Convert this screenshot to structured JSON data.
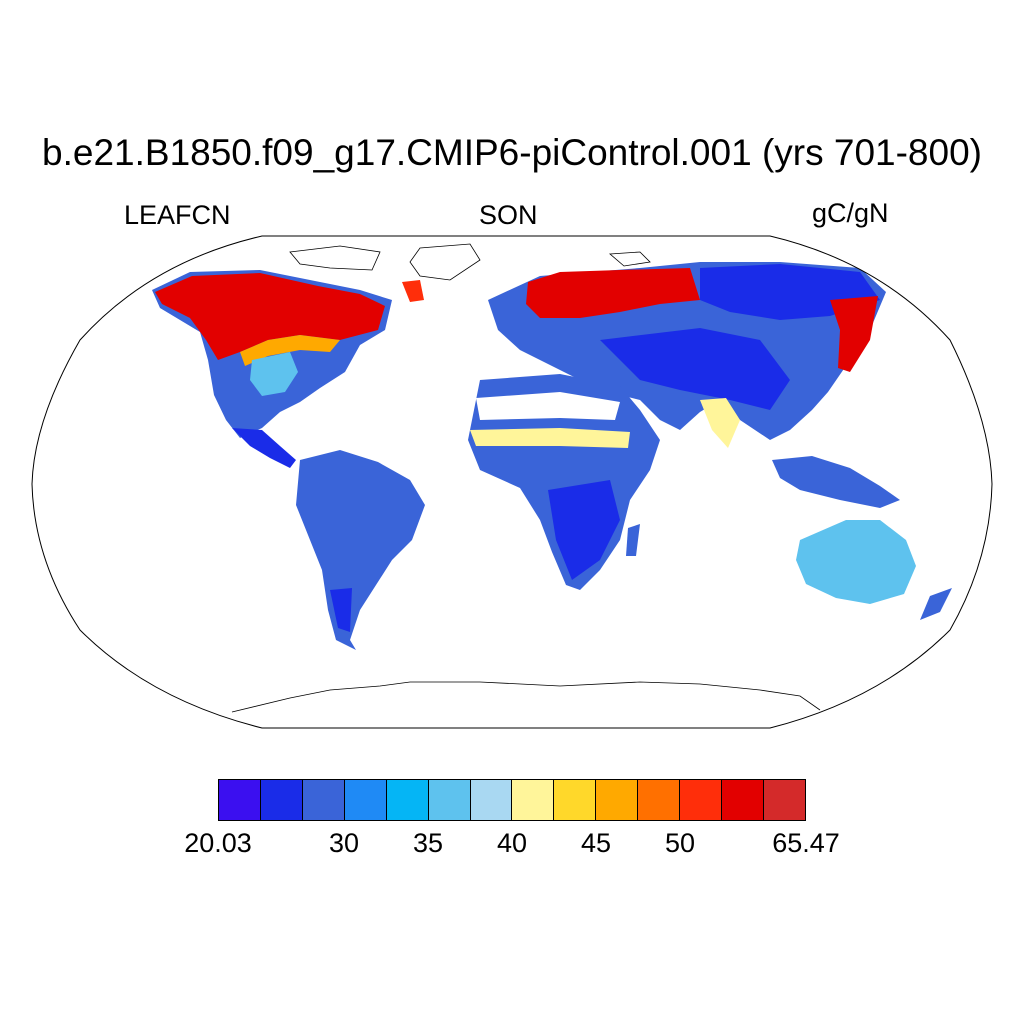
{
  "figure": {
    "title": "b.e21.B1850.f09_g17.CMIP6-piControl.001 (yrs 701-800)",
    "variable": "LEAFCN",
    "season": "SON",
    "units": "gC/gN"
  },
  "colorbar": {
    "colors": [
      "#3b0ff0",
      "#1a2ce8",
      "#3a64d8",
      "#1f8af5",
      "#05b5f5",
      "#5ec2ee",
      "#a9d8f2",
      "#fff59a",
      "#ffd82a",
      "#ffa900",
      "#ff7000",
      "#ff2e0a",
      "#e20000",
      "#d42a2a"
    ],
    "labels": [
      {
        "text": "20.03",
        "boundary": 0
      },
      {
        "text": "30",
        "boundary": 3
      },
      {
        "text": "35",
        "boundary": 5
      },
      {
        "text": "40",
        "boundary": 7
      },
      {
        "text": "45",
        "boundary": 9
      },
      {
        "text": "50",
        "boundary": 11
      },
      {
        "text": "65.47",
        "boundary": 14
      }
    ]
  },
  "map": {
    "projection": "Robinson",
    "land_fill_legend": [
      {
        "region": "boreal-north-america",
        "color": "#e20000"
      },
      {
        "region": "northern-eurasia",
        "color": "#e20000"
      },
      {
        "region": "siberia",
        "color": "#1a2ce8"
      },
      {
        "region": "tropics",
        "color": "#3a64d8"
      },
      {
        "region": "sahel-band",
        "color": "#fff59a"
      },
      {
        "region": "australia",
        "color": "#5ec2ee"
      }
    ]
  }
}
